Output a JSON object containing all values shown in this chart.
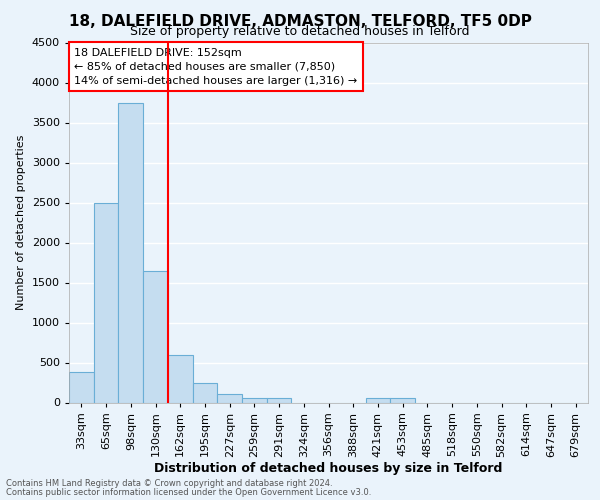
{
  "title1": "18, DALEFIELD DRIVE, ADMASTON, TELFORD, TF5 0DP",
  "title2": "Size of property relative to detached houses in Telford",
  "xlabel": "Distribution of detached houses by size in Telford",
  "ylabel": "Number of detached properties",
  "categories": [
    "33sqm",
    "65sqm",
    "98sqm",
    "130sqm",
    "162sqm",
    "195sqm",
    "227sqm",
    "259sqm",
    "291sqm",
    "324sqm",
    "356sqm",
    "388sqm",
    "421sqm",
    "453sqm",
    "485sqm",
    "518sqm",
    "550sqm",
    "582sqm",
    "614sqm",
    "647sqm",
    "679sqm"
  ],
  "values": [
    380,
    2500,
    3750,
    1650,
    600,
    240,
    105,
    60,
    60,
    0,
    0,
    0,
    55,
    55,
    0,
    0,
    0,
    0,
    0,
    0,
    0
  ],
  "bar_color": "#c5ddf0",
  "bar_edge_color": "#6aaed6",
  "vline_x": 3.5,
  "vline_color": "red",
  "annotation_title": "18 DALEFIELD DRIVE: 152sqm",
  "annotation_line1": "← 85% of detached houses are smaller (7,850)",
  "annotation_line2": "14% of semi-detached houses are larger (1,316) →",
  "annotation_box_color": "white",
  "annotation_box_edge": "red",
  "footer1": "Contains HM Land Registry data © Crown copyright and database right 2024.",
  "footer2": "Contains public sector information licensed under the Open Government Licence v3.0.",
  "ylim": [
    0,
    4500
  ],
  "yticks": [
    0,
    500,
    1000,
    1500,
    2000,
    2500,
    3000,
    3500,
    4000,
    4500
  ],
  "background_color": "#eaf3fb",
  "grid_color": "#ffffff",
  "title1_fontsize": 11,
  "title2_fontsize": 9,
  "xlabel_fontsize": 9,
  "ylabel_fontsize": 8,
  "tick_fontsize": 8,
  "ann_fontsize": 8,
  "footer_fontsize": 6
}
